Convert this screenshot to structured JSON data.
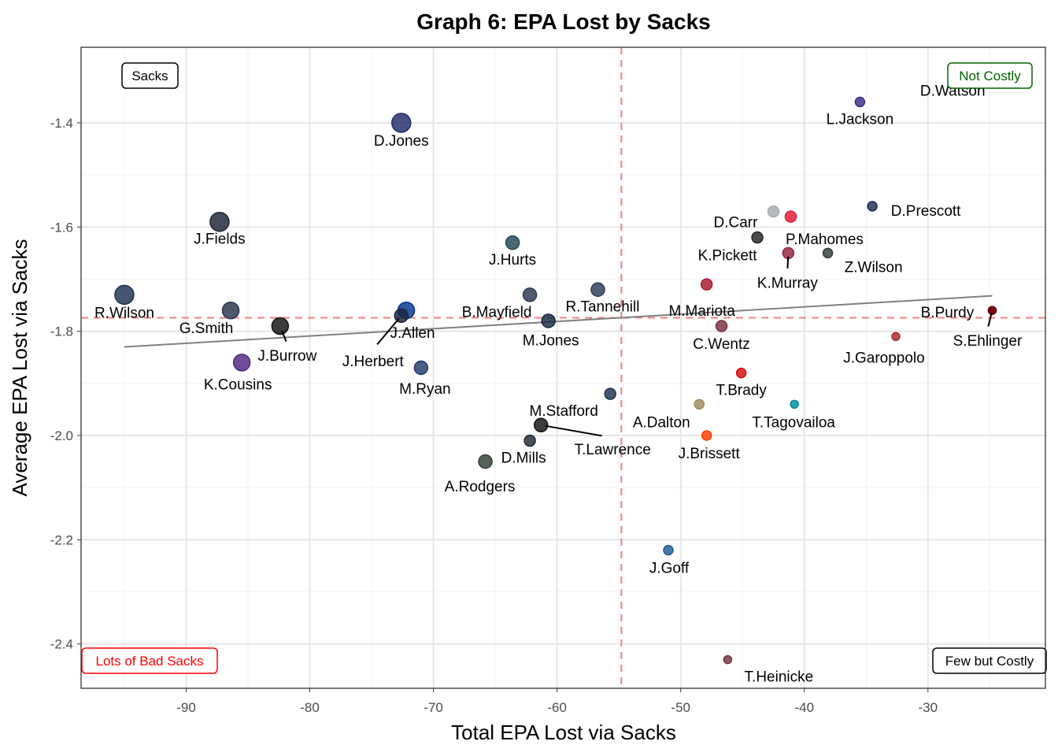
{
  "chart_data": {
    "type": "scatter",
    "title": "Graph 6: EPA Lost by Sacks",
    "xlabel": "Total EPA Lost via Sacks",
    "ylabel": "Average EPA Lost via Sacks",
    "xlim": [
      -98.5,
      -20.5
    ],
    "ylim": [
      -2.485,
      -1.255
    ],
    "xticks": [
      -90,
      -80,
      -70,
      -60,
      -50,
      -40,
      -30
    ],
    "yticks": [
      -1.4,
      -1.6,
      -1.8,
      -2.0,
      -2.2,
      -2.4
    ],
    "grid": true,
    "reference_lines": {
      "x": -54.8,
      "y": -1.774,
      "color": "#f08080",
      "style": "dashed"
    },
    "trend_line": {
      "x": [
        -95.0,
        -24.8
      ],
      "y": [
        -1.83,
        -1.732
      ],
      "color": "#808080"
    },
    "quadrant_labels": [
      {
        "text": "Sacks",
        "position": "top-left",
        "color": "#000000"
      },
      {
        "text": "Not Costly",
        "position": "top-right",
        "color": "#006400"
      },
      {
        "text": "Lots of Bad Sacks",
        "position": "bottom-left",
        "color": "#ff0000"
      },
      {
        "text": "Few but Costly",
        "position": "bottom-right",
        "color": "#000000"
      }
    ],
    "points": [
      {
        "name": "R.Wilson",
        "x": -95.0,
        "y": -1.73,
        "size_level": 5,
        "color": "#1f3150"
      },
      {
        "name": "G.Smith",
        "x": -86.4,
        "y": -1.76,
        "size_level": 4,
        "color": "#26334d"
      },
      {
        "name": "J.Fields",
        "x": -87.3,
        "y": -1.59,
        "size_level": 5,
        "color": "#1c2336"
      },
      {
        "name": "D.Jones",
        "x": -72.6,
        "y": -1.4,
        "size_level": 5,
        "color": "#1f2b66"
      },
      {
        "name": "J.Burrow",
        "x": -82.4,
        "y": -1.79,
        "size_level": 4,
        "color": "#111111"
      },
      {
        "name": "K.Cousins",
        "x": -85.5,
        "y": -1.86,
        "size_level": 4,
        "color": "#4f2683"
      },
      {
        "name": "J.Allen",
        "x": -72.2,
        "y": -1.76,
        "size_level": 4,
        "color": "#00338d"
      },
      {
        "name": "J.Herbert",
        "x": -72.6,
        "y": -1.77,
        "size_level": 3,
        "color": "#1a2540"
      },
      {
        "name": "M.Ryan",
        "x": -71.0,
        "y": -1.87,
        "size_level": 3,
        "color": "#1f3a6a"
      },
      {
        "name": "J.Hurts",
        "x": -63.6,
        "y": -1.63,
        "size_level": 3,
        "color": "#1f4a52"
      },
      {
        "name": "B.Mayfield",
        "x": -62.2,
        "y": -1.73,
        "size_level": 3,
        "color": "#2a3550"
      },
      {
        "name": "M.Jones",
        "x": -60.7,
        "y": -1.78,
        "size_level": 3,
        "color": "#1a2a45"
      },
      {
        "name": "R.Tannehill",
        "x": -56.7,
        "y": -1.72,
        "size_level": 3,
        "color": "#2a3a55"
      },
      {
        "name": "M.Stafford",
        "x": -55.7,
        "y": -1.92,
        "size_level": 2,
        "color": "#1f3050"
      },
      {
        "name": "T.Lawrence",
        "x": -61.3,
        "y": -1.98,
        "size_level": 3,
        "color": "#111111"
      },
      {
        "name": "D.Mills",
        "x": -62.2,
        "y": -2.01,
        "size_level": 2,
        "color": "#1f2a35"
      },
      {
        "name": "A.Rodgers",
        "x": -65.8,
        "y": -2.05,
        "size_level": 3,
        "color": "#2f3f35"
      },
      {
        "name": "D.Carr",
        "x": -42.5,
        "y": -1.57,
        "size_level": 2,
        "color": "#a5acaf"
      },
      {
        "name": "P.Mahomes",
        "x": -41.1,
        "y": -1.58,
        "size_level": 2,
        "color": "#e31837"
      },
      {
        "name": "K.Pickett",
        "x": -43.8,
        "y": -1.62,
        "size_level": 2,
        "color": "#222222"
      },
      {
        "name": "K.Murray",
        "x": -41.3,
        "y": -1.65,
        "size_level": 2,
        "color": "#97233f"
      },
      {
        "name": "Z.Wilson",
        "x": -38.1,
        "y": -1.65,
        "size_level": 1,
        "color": "#2e3d35"
      },
      {
        "name": "D.Prescott",
        "x": -34.5,
        "y": -1.56,
        "size_level": 1,
        "color": "#1c2d4d"
      },
      {
        "name": "L.Jackson",
        "x": -35.5,
        "y": -1.36,
        "size_level": 1,
        "color": "#3e2b83"
      },
      {
        "name": "D.Watson",
        "x": -28.0,
        "y": -1.31,
        "size_level": 1,
        "color": "#311d00"
      },
      {
        "name": "M.Mariota",
        "x": -47.9,
        "y": -1.71,
        "size_level": 2,
        "color": "#a71930"
      },
      {
        "name": "C.Wentz",
        "x": -46.7,
        "y": -1.79,
        "size_level": 2,
        "color": "#773141"
      },
      {
        "name": "B.Purdy",
        "x": -24.8,
        "y": -1.76,
        "size_level": 0,
        "color": "#8b0010"
      },
      {
        "name": "S.Ehlinger",
        "x": -24.8,
        "y": -1.76,
        "size_level": 0,
        "color": "#6a0010"
      },
      {
        "name": "J.Garoppolo",
        "x": -32.6,
        "y": -1.81,
        "size_level": 0,
        "color": "#a5282c"
      },
      {
        "name": "T.Brady",
        "x": -45.1,
        "y": -1.88,
        "size_level": 1,
        "color": "#d50a0a"
      },
      {
        "name": "T.Tagovailoa",
        "x": -40.8,
        "y": -1.94,
        "size_level": 0,
        "color": "#008e97"
      },
      {
        "name": "A.Dalton",
        "x": -48.5,
        "y": -1.94,
        "size_level": 1,
        "color": "#9f8958"
      },
      {
        "name": "J.Brissett",
        "x": -47.9,
        "y": -2.0,
        "size_level": 1,
        "color": "#ff3c00"
      },
      {
        "name": "J.Goff",
        "x": -51.0,
        "y": -2.22,
        "size_level": 1,
        "color": "#1f5a94"
      },
      {
        "name": "T.Heinicke",
        "x": -46.2,
        "y": -2.43,
        "size_level": 0,
        "color": "#773141"
      }
    ]
  }
}
